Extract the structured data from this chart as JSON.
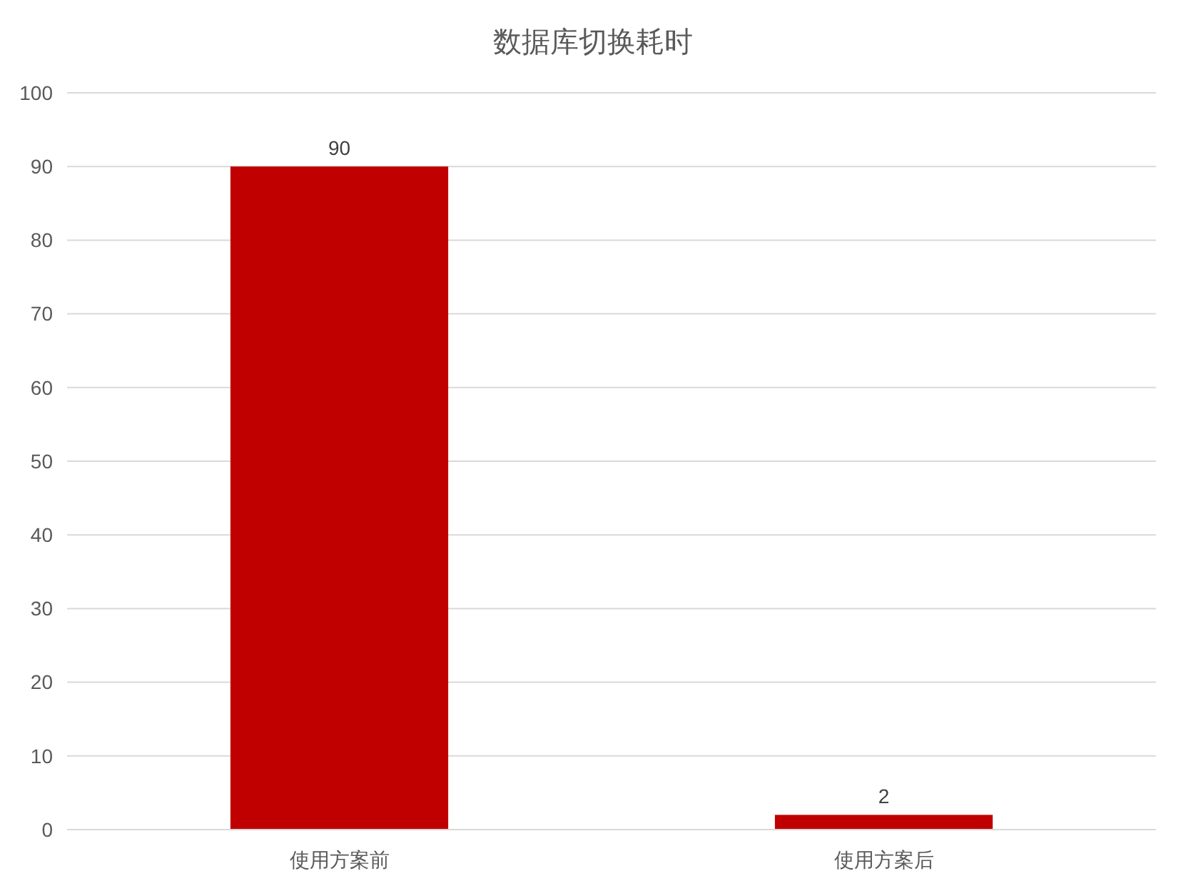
{
  "chart_data": {
    "type": "bar",
    "title": "数据库切换耗时",
    "categories": [
      "使用方案前",
      "使用方案后"
    ],
    "values": [
      90,
      2
    ],
    "color": "#c00000",
    "ylim": [
      0,
      100
    ],
    "yticks": [
      0,
      10,
      20,
      30,
      40,
      50,
      60,
      70,
      80,
      90,
      100
    ],
    "grid": "y",
    "data_labels": true
  }
}
